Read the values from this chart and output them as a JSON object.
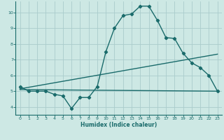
{
  "xlabel": "Humidex (Indice chaleur)",
  "bg_color": "#cde8e4",
  "grid_color": "#aacccc",
  "line_color": "#1a6b6b",
  "xlim": [
    -0.5,
    23.5
  ],
  "ylim": [
    3.5,
    10.7
  ],
  "x_ticks": [
    0,
    1,
    2,
    3,
    4,
    5,
    6,
    7,
    8,
    9,
    10,
    11,
    12,
    13,
    14,
    15,
    16,
    17,
    18,
    19,
    20,
    21,
    22,
    23
  ],
  "y_ticks": [
    4,
    5,
    6,
    7,
    8,
    9,
    10
  ],
  "series1_x": [
    0,
    1,
    2,
    3,
    4,
    5,
    6,
    7,
    8,
    9,
    10,
    11,
    12,
    13,
    14,
    15,
    16,
    17,
    18,
    19,
    20,
    21,
    22,
    23
  ],
  "series1_y": [
    5.3,
    5.0,
    5.0,
    5.0,
    4.8,
    4.7,
    3.9,
    4.6,
    4.6,
    5.3,
    7.5,
    9.0,
    9.8,
    9.9,
    10.4,
    10.4,
    9.5,
    8.4,
    8.35,
    7.4,
    6.8,
    6.5,
    6.0,
    5.0
  ],
  "series2_x": [
    0,
    23
  ],
  "series2_y": [
    5.1,
    5.0
  ],
  "series3_x": [
    0,
    23
  ],
  "series3_y": [
    5.15,
    7.35
  ]
}
